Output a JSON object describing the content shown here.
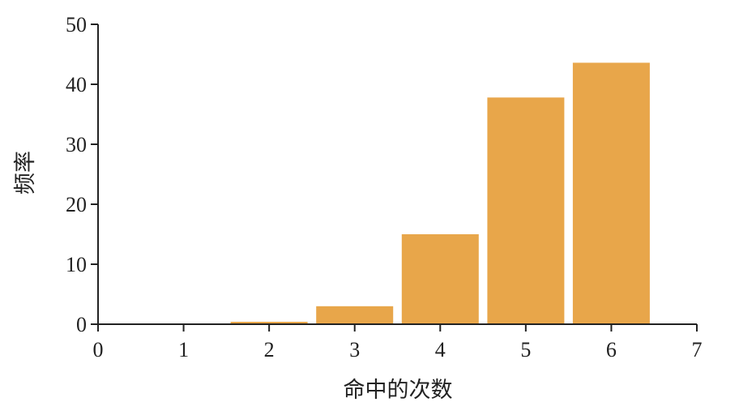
{
  "chart_data": {
    "type": "bar",
    "title": "",
    "xlabel": "命中的次数",
    "ylabel": "频率",
    "x": [
      1,
      2,
      3,
      4,
      5,
      6
    ],
    "values": [
      0,
      0.4,
      3,
      15,
      37.8,
      43.6
    ],
    "xlim": [
      0,
      7
    ],
    "ylim": [
      0,
      50
    ],
    "xticks": [
      0,
      1,
      2,
      3,
      4,
      5,
      6,
      7
    ],
    "yticks": [
      0,
      10,
      20,
      30,
      40,
      50
    ],
    "bar_width": 0.9,
    "grid": false,
    "colors": {
      "bar": "#E8A64A",
      "axis": "#222222"
    }
  }
}
